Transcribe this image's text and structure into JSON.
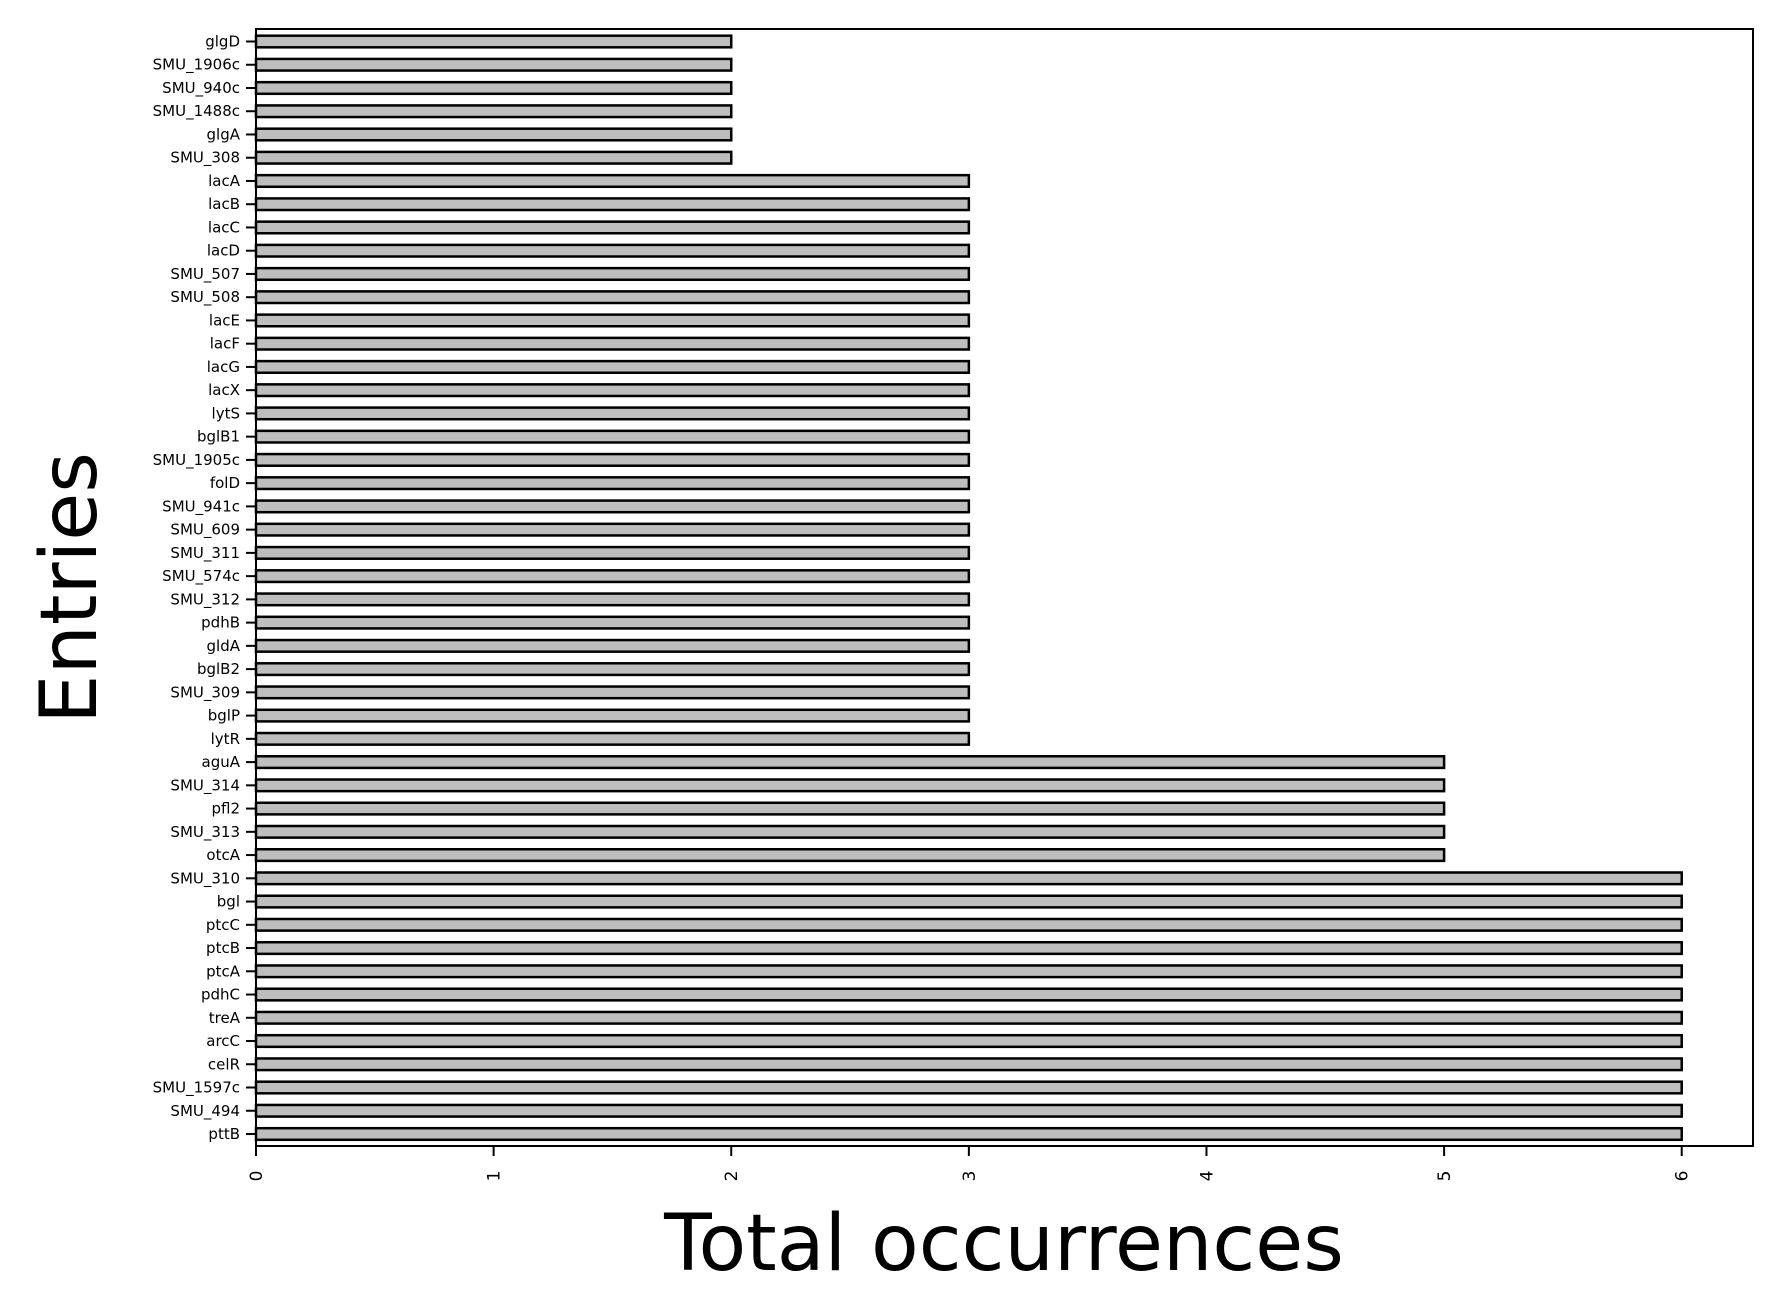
{
  "chart_data": {
    "type": "bar",
    "orientation": "horizontal",
    "title": "",
    "xlabel": "Total occurrences",
    "ylabel": "Entries",
    "xlim": [
      0,
      6.3
    ],
    "xticks": [
      "0",
      "1",
      "2",
      "3",
      "4",
      "5",
      "6"
    ],
    "grid": false,
    "bar_color": "#bebebe",
    "edge_color": "#000000",
    "categories": [
      "glgD",
      "SMU_1906c",
      "SMU_940c",
      "SMU_1488c",
      "glgA",
      "SMU_308",
      "lacA",
      "lacB",
      "lacC",
      "lacD",
      "SMU_507",
      "SMU_508",
      "lacE",
      "lacF",
      "lacG",
      "lacX",
      "lytS",
      "bglB1",
      "SMU_1905c",
      "folD",
      "SMU_941c",
      "SMU_609",
      "SMU_311",
      "SMU_574c",
      "SMU_312",
      "pdhB",
      "gldA",
      "bglB2",
      "SMU_309",
      "bglP",
      "lytR",
      "aguA",
      "SMU_314",
      "pfl2",
      "SMU_313",
      "otcA",
      "SMU_310",
      "bgl",
      "ptcC",
      "ptcB",
      "ptcA",
      "pdhC",
      "treA",
      "arcC",
      "celR",
      "SMU_1597c",
      "SMU_494",
      "pttB"
    ],
    "values": [
      2,
      2,
      2,
      2,
      2,
      2,
      3,
      3,
      3,
      3,
      3,
      3,
      3,
      3,
      3,
      3,
      3,
      3,
      3,
      3,
      3,
      3,
      3,
      3,
      3,
      3,
      3,
      3,
      3,
      3,
      3,
      5,
      5,
      5,
      5,
      5,
      6,
      6,
      6,
      6,
      6,
      6,
      6,
      6,
      6,
      6,
      6,
      6
    ]
  }
}
